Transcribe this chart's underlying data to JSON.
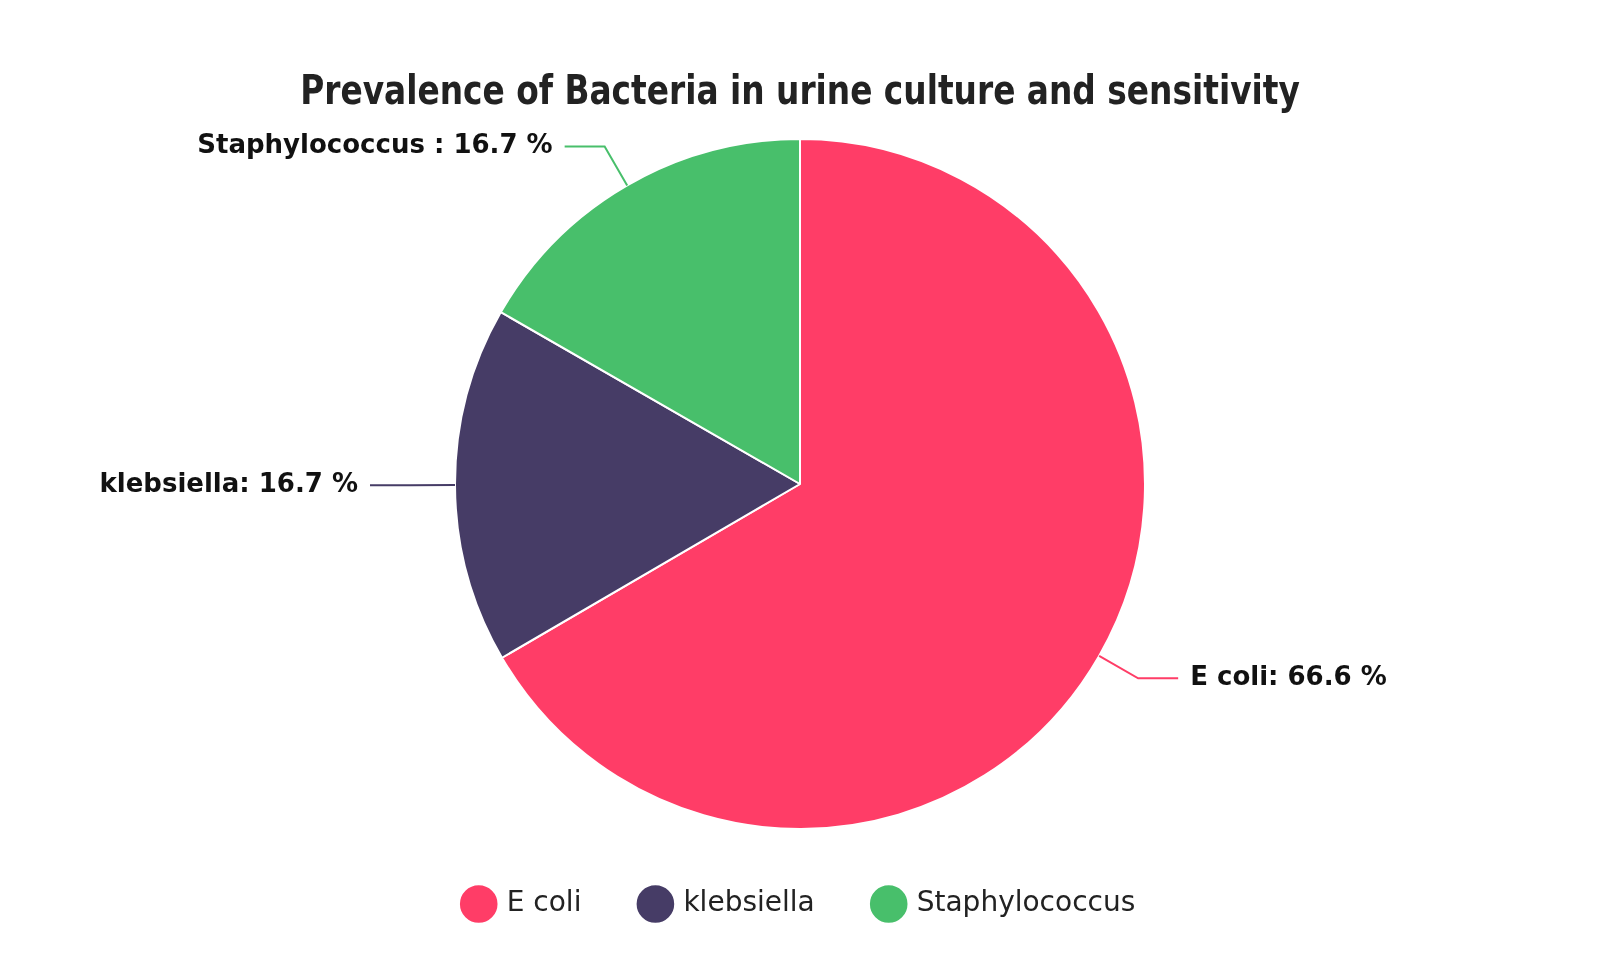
{
  "chart_data": {
    "type": "pie",
    "title": "Prevalence of Bacteria in urine culture and sensitivity",
    "categories": [
      "E coli",
      "klebsiella",
      "Staphylococcus"
    ],
    "values": [
      66.6,
      16.7,
      16.7
    ],
    "colors": [
      "#ff3d67",
      "#463c66",
      "#48bf6b"
    ],
    "value_labels": [
      "E coli: 66.6 %",
      "klebsiella: 16.7 %",
      "Staphylococcus : 16.7 %"
    ],
    "legend": "bottom"
  }
}
